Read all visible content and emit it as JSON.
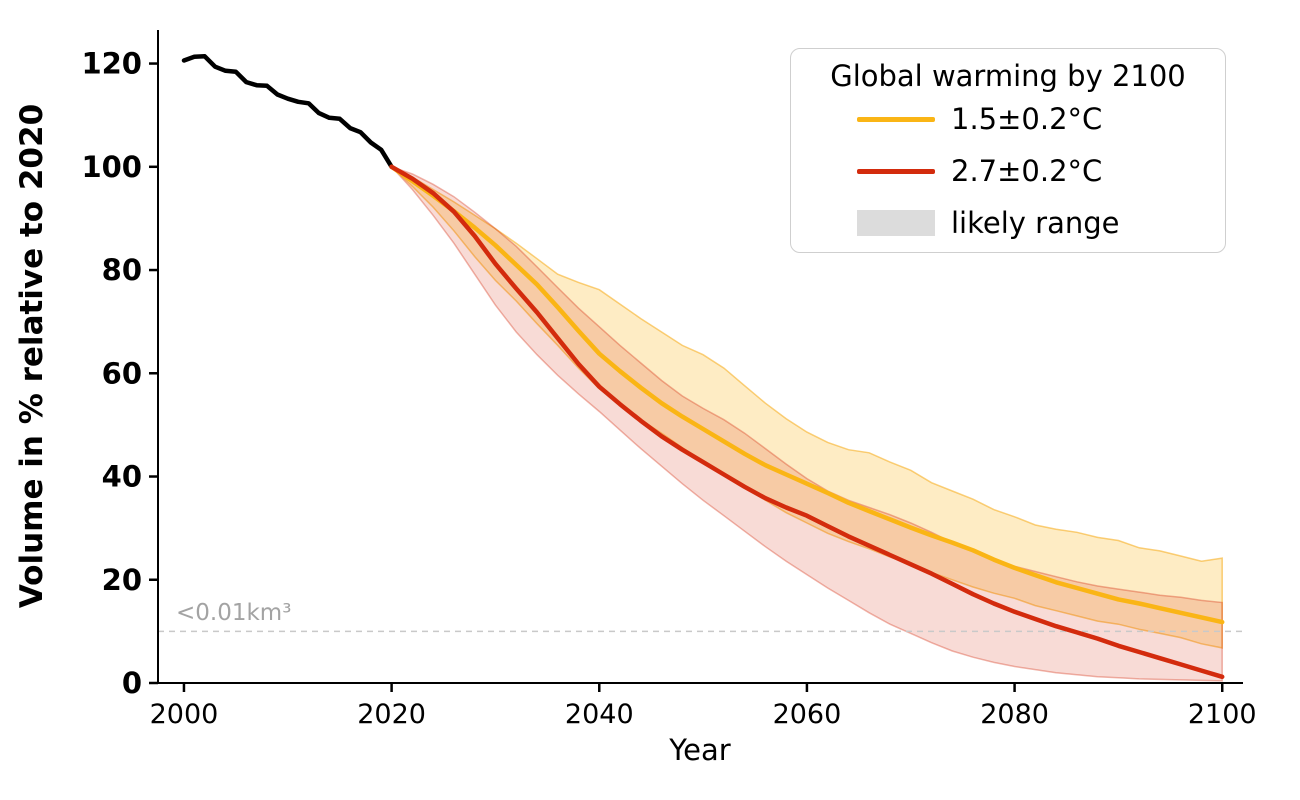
{
  "chart_data": {
    "type": "line",
    "title": "",
    "xlabel": "Year",
    "ylabel": "Volume in % relative to 2020",
    "xlim": [
      1997.5,
      2102
    ],
    "ylim": [
      0,
      126.5
    ],
    "xticks": [
      "2000",
      "2020",
      "2040",
      "2060",
      "2080",
      "2100"
    ],
    "xtick_values": [
      2000,
      2020,
      2040,
      2060,
      2080,
      2100
    ],
    "yticks": [
      "0",
      "20",
      "40",
      "60",
      "80",
      "100",
      "120"
    ],
    "ytick_values": [
      0,
      20,
      40,
      60,
      80,
      100,
      120
    ],
    "grid": false,
    "threshold": {
      "value": 10,
      "label": "<0.01km³",
      "label_color": "#a3a3a3",
      "line_color": "#c9c9c9"
    },
    "legend": {
      "title": "Global warming by 2100",
      "position": "upper right",
      "entries": [
        {
          "label": "1.5±0.2°C",
          "type": "line",
          "color": "#FAB515"
        },
        {
          "label": "2.7±0.2°C",
          "type": "line",
          "color": "#D32B0D"
        },
        {
          "label": "likely range",
          "type": "patch",
          "color": "#DCDCDC"
        }
      ]
    },
    "series": [
      {
        "name": "historical",
        "color": "#000000",
        "x": [
          2000,
          2001,
          2002,
          2003,
          2004,
          2005,
          2006,
          2007,
          2008,
          2009,
          2010,
          2011,
          2012,
          2013,
          2014,
          2015,
          2016,
          2017,
          2018,
          2019,
          2020
        ],
        "y": [
          120.6,
          121.3,
          121.4,
          119.4,
          118.6,
          118.4,
          116.4,
          115.8,
          115.7,
          114.0,
          113.2,
          112.6,
          112.3,
          110.4,
          109.5,
          109.3,
          107.5,
          106.7,
          104.7,
          103.3,
          100.0
        ]
      },
      {
        "name": "1.5±0.2°C",
        "color": "#FAB515",
        "band_fill": "rgba(250,181,21,0.25)",
        "band_edge": "rgba(245,170,20,0.55)",
        "x": [
          2020,
          2022,
          2024,
          2026,
          2028,
          2030,
          2032,
          2034,
          2036,
          2038,
          2040,
          2042,
          2044,
          2046,
          2048,
          2050,
          2052,
          2054,
          2056,
          2058,
          2060,
          2062,
          2064,
          2066,
          2068,
          2070,
          2072,
          2074,
          2076,
          2078,
          2080,
          2082,
          2084,
          2086,
          2088,
          2090,
          2092,
          2094,
          2096,
          2098,
          2100
        ],
        "y": [
          100,
          97.2,
          94.4,
          91.4,
          88.2,
          84.8,
          81.0,
          77.2,
          72.8,
          68.2,
          63.8,
          60.4,
          57.2,
          54.2,
          51.6,
          49.2,
          46.8,
          44.4,
          42.2,
          40.4,
          38.6,
          36.8,
          34.9,
          33.3,
          31.7,
          30.1,
          28.6,
          27.2,
          25.7,
          23.9,
          22.3,
          20.9,
          19.5,
          18.4,
          17.3,
          16.2,
          15.4,
          14.5,
          13.6,
          12.7,
          11.8
        ],
        "band_upper": [
          100,
          98.0,
          95.6,
          93.2,
          90.6,
          88.0,
          85.2,
          82.2,
          79.2,
          77.6,
          76.2,
          73.4,
          70.6,
          68.0,
          65.4,
          63.6,
          61.0,
          57.6,
          54.2,
          51.2,
          48.6,
          46.6,
          45.2,
          44.6,
          42.8,
          41.2,
          38.8,
          37.2,
          35.6,
          33.6,
          32.2,
          30.6,
          29.8,
          29.2,
          28.2,
          27.6,
          26.2,
          25.6,
          24.6,
          23.6,
          24.2
        ],
        "band_lower": [
          100,
          96.2,
          92.2,
          87.6,
          82.6,
          78.0,
          74.0,
          69.6,
          65.4,
          61.0,
          57.0,
          54.0,
          51.0,
          48.4,
          45.6,
          43.0,
          40.6,
          38.0,
          35.4,
          33.0,
          31.0,
          29.0,
          27.4,
          26.0,
          24.4,
          23.0,
          21.4,
          20.0,
          18.6,
          17.4,
          16.4,
          15.0,
          14.0,
          13.0,
          12.0,
          11.4,
          10.4,
          9.6,
          8.8,
          7.6,
          6.8
        ]
      },
      {
        "name": "2.7±0.2°C",
        "color": "#D32B0D",
        "band_fill": "rgba(211,43,13,0.17)",
        "band_edge": "rgba(211,43,13,0.35)",
        "x": [
          2020,
          2022,
          2024,
          2026,
          2028,
          2030,
          2032,
          2034,
          2036,
          2038,
          2040,
          2042,
          2044,
          2046,
          2048,
          2050,
          2052,
          2054,
          2056,
          2058,
          2060,
          2062,
          2064,
          2066,
          2068,
          2070,
          2072,
          2074,
          2076,
          2078,
          2080,
          2082,
          2084,
          2086,
          2088,
          2090,
          2092,
          2094,
          2096,
          2098,
          2100
        ],
        "y": [
          100,
          97.7,
          94.9,
          91.3,
          86.6,
          81.2,
          76.4,
          71.8,
          66.8,
          61.8,
          57.4,
          54.0,
          50.8,
          47.8,
          45.2,
          42.8,
          40.4,
          38.0,
          35.8,
          34.0,
          32.4,
          30.4,
          28.4,
          26.6,
          24.8,
          23.0,
          21.2,
          19.2,
          17.2,
          15.4,
          13.8,
          12.4,
          11.0,
          9.8,
          8.6,
          7.2,
          6.0,
          4.8,
          3.6,
          2.4,
          1.2
        ],
        "band_upper": [
          100,
          98.6,
          96.6,
          94.2,
          91.2,
          88.0,
          84.6,
          80.6,
          76.6,
          72.6,
          69.0,
          65.4,
          62.0,
          58.6,
          55.6,
          53.2,
          51.0,
          48.4,
          45.4,
          42.4,
          39.6,
          37.2,
          35.4,
          34.0,
          32.6,
          31.0,
          29.2,
          27.2,
          25.6,
          24.0,
          22.6,
          21.6,
          20.6,
          19.6,
          18.8,
          18.2,
          17.6,
          17.0,
          16.6,
          16.0,
          15.6
        ],
        "band_lower": [
          100,
          95.6,
          90.6,
          85.2,
          79.2,
          73.2,
          68.0,
          63.6,
          59.6,
          56.0,
          52.6,
          49.0,
          45.4,
          42.0,
          38.6,
          35.4,
          32.4,
          29.4,
          26.4,
          23.6,
          21.0,
          18.4,
          16.0,
          13.6,
          11.4,
          9.6,
          7.8,
          6.2,
          5.0,
          4.0,
          3.2,
          2.6,
          2.0,
          1.6,
          1.2,
          1.0,
          0.8,
          0.7,
          0.6,
          0.5,
          0.4
        ]
      }
    ]
  }
}
